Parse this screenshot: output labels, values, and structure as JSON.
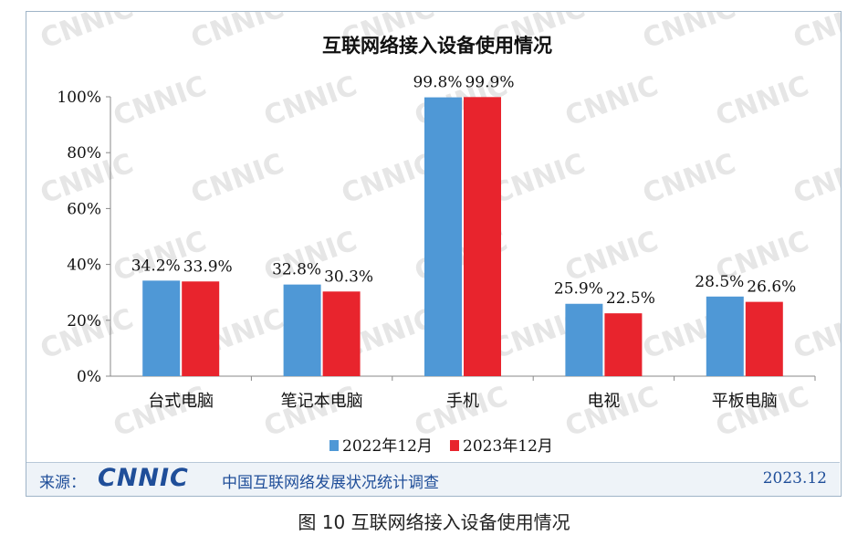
{
  "chart_data": {
    "type": "bar",
    "title": "互联网络接入设备使用情况",
    "categories": [
      "台式电脑",
      "笔记本电脑",
      "手机",
      "电视",
      "平板电脑"
    ],
    "series": [
      {
        "name": "2022年12月",
        "values": [
          34.2,
          32.8,
          99.8,
          25.9,
          28.5
        ],
        "labels": [
          "34.2%",
          "32.8%",
          "99.8%",
          "25.9%",
          "28.5%"
        ],
        "color": "#4f98d6"
      },
      {
        "name": "2023年12月",
        "values": [
          33.9,
          30.3,
          99.9,
          22.5,
          26.6
        ],
        "labels": [
          "33.9%",
          "30.3%",
          "99.9%",
          "22.5%",
          "26.6%"
        ],
        "color": "#e8242d"
      }
    ],
    "yticks": [
      "0%",
      "20%",
      "40%",
      "60%",
      "80%",
      "100%"
    ],
    "ylim": [
      0,
      100
    ],
    "legend": "bottom",
    "grid": false
  },
  "footer": {
    "source_label": "来源：",
    "logo": "CNNIC",
    "org": "中国互联网络发展状况统计调查",
    "date": "2023.12"
  },
  "watermark": "CNNIC",
  "caption": "图 10  互联网络接入设备使用情况"
}
